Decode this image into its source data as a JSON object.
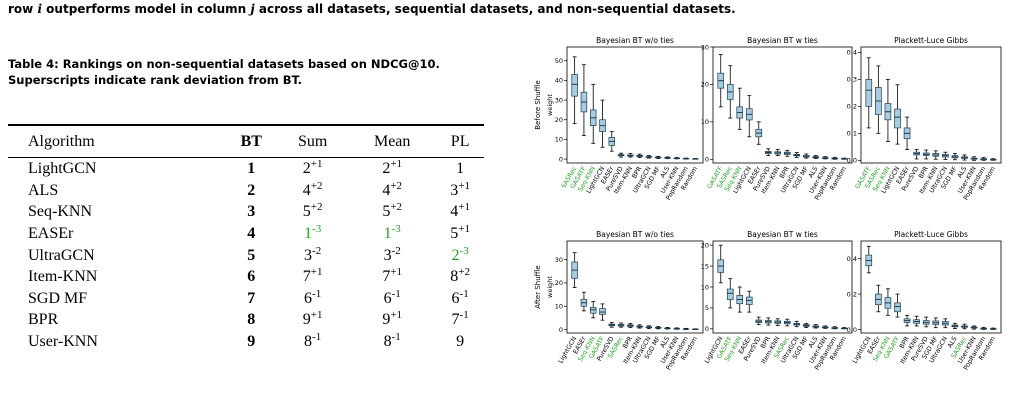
{
  "intro": [
    "row ",
    "i",
    " outperforms model in column ",
    "j",
    " across all datasets, sequential datasets, and non-sequential datasets."
  ],
  "table": {
    "caption": "Table 4: Rankings on non-sequential datasets based on NDCG@10. Superscripts indicate rank deviation from BT.",
    "columns": [
      "Algorithm",
      "BT",
      "Sum",
      "Mean",
      "PL"
    ],
    "highlight_color": "#2a9d2a",
    "rows": [
      {
        "algorithm": "LightGCN",
        "bt": 1,
        "cells": [
          {
            "rank": 2,
            "dev": "+1"
          },
          {
            "rank": 2,
            "dev": "+1"
          },
          {
            "rank": 1
          }
        ]
      },
      {
        "algorithm": "ALS",
        "bt": 2,
        "cells": [
          {
            "rank": 4,
            "dev": "+2"
          },
          {
            "rank": 4,
            "dev": "+2"
          },
          {
            "rank": 3,
            "dev": "+1"
          }
        ]
      },
      {
        "algorithm": "Seq-KNN",
        "bt": 3,
        "cells": [
          {
            "rank": 5,
            "dev": "+2"
          },
          {
            "rank": 5,
            "dev": "+2"
          },
          {
            "rank": 4,
            "dev": "+1"
          }
        ]
      },
      {
        "algorithm": "EASEr",
        "bt": 4,
        "cells": [
          {
            "rank": 1,
            "dev": "-3",
            "highlight": true
          },
          {
            "rank": 1,
            "dev": "-3",
            "highlight": true
          },
          {
            "rank": 5,
            "dev": "+1"
          }
        ]
      },
      {
        "algorithm": "UltraGCN",
        "bt": 5,
        "cells": [
          {
            "rank": 3,
            "dev": "-2"
          },
          {
            "rank": 3,
            "dev": "-2"
          },
          {
            "rank": 2,
            "dev": "-3",
            "highlight": true
          }
        ]
      },
      {
        "algorithm": "Item-KNN",
        "bt": 6,
        "cells": [
          {
            "rank": 7,
            "dev": "+1"
          },
          {
            "rank": 7,
            "dev": "+1"
          },
          {
            "rank": 8,
            "dev": "+2"
          }
        ]
      },
      {
        "algorithm": "SGD MF",
        "bt": 7,
        "cells": [
          {
            "rank": 6,
            "dev": "-1"
          },
          {
            "rank": 6,
            "dev": "-1"
          },
          {
            "rank": 6,
            "dev": "-1"
          }
        ]
      },
      {
        "algorithm": "BPR",
        "bt": 8,
        "cells": [
          {
            "rank": 9,
            "dev": "+1"
          },
          {
            "rank": 9,
            "dev": "+1"
          },
          {
            "rank": 7,
            "dev": "-1"
          }
        ]
      },
      {
        "algorithm": "User-KNN",
        "bt": 9,
        "cells": [
          {
            "rank": 8,
            "dev": "-1"
          },
          {
            "rank": 8,
            "dev": "-1"
          },
          {
            "rank": 9
          }
        ]
      }
    ]
  },
  "figure": {
    "row_labels": [
      "Before Shuffle",
      "After Shuffle"
    ],
    "box_color": "#a9cde0",
    "highlight_color": "#2a9d2a"
  },
  "chart_data": [
    {
      "type": "box",
      "title": "Bayesian BT w/o ties",
      "ylabel": "weight",
      "categories": [
        "SASRec",
        "GASATF",
        "Seq-KNN",
        "LightGCN",
        "EASEr",
        "PureSVD",
        "Item-KNN",
        "BPR",
        "UltraGCN",
        "SGD MF",
        "ALS",
        "User-KNN",
        "PopRandom",
        "Random"
      ],
      "highlighted": [
        0,
        1,
        2
      ],
      "ylim": [
        -2,
        57
      ],
      "yticks": [
        0,
        10,
        20,
        30,
        40,
        50
      ],
      "boxes": [
        [
          18,
          32,
          38,
          43,
          52
        ],
        [
          12,
          24,
          29,
          34,
          48
        ],
        [
          8,
          17,
          21,
          25,
          38
        ],
        [
          6,
          14,
          17,
          20,
          30
        ],
        [
          4,
          7,
          9,
          11,
          14
        ],
        [
          1,
          1.7,
          2,
          2.3,
          3
        ],
        [
          1,
          1.5,
          1.8,
          2.1,
          2.8
        ],
        [
          0.8,
          1.3,
          1.6,
          1.9,
          2.5
        ],
        [
          0.5,
          0.9,
          1.1,
          1.3,
          1.8
        ],
        [
          0.3,
          0.6,
          0.8,
          1,
          1.4
        ],
        [
          0.2,
          0.4,
          0.6,
          0.8,
          1.1
        ],
        [
          0.1,
          0.3,
          0.4,
          0.5,
          0.8
        ],
        [
          0,
          0.1,
          0.2,
          0.3,
          0.5
        ],
        [
          0,
          0.05,
          0.1,
          0.15,
          0.3
        ]
      ]
    },
    {
      "type": "box",
      "title": "Bayesian BT w ties",
      "categories": [
        "GASATF",
        "SASRec",
        "Seq-KNN",
        "LightGCN",
        "EASEr",
        "PureSVD",
        "Item-KNN",
        "BPR",
        "UltraGCN",
        "SGD MF",
        "ALS",
        "User-KNN",
        "PopRandom",
        "Random"
      ],
      "highlighted": [
        0,
        1,
        2
      ],
      "ylim": [
        -1,
        30
      ],
      "yticks": [
        0,
        10,
        20,
        30
      ],
      "boxes": [
        [
          14,
          19,
          21,
          23,
          28
        ],
        [
          11,
          16,
          18,
          20,
          25
        ],
        [
          8,
          11,
          12.5,
          14,
          19
        ],
        [
          6,
          10.5,
          12,
          13.5,
          17
        ],
        [
          4,
          6,
          7,
          8,
          10
        ],
        [
          1,
          1.5,
          1.8,
          2.1,
          2.8
        ],
        [
          1,
          1.4,
          1.7,
          2,
          2.6
        ],
        [
          0.8,
          1.3,
          1.6,
          1.9,
          2.4
        ],
        [
          0.5,
          0.9,
          1.1,
          1.3,
          1.8
        ],
        [
          0.3,
          0.6,
          0.8,
          1,
          1.4
        ],
        [
          0.2,
          0.4,
          0.5,
          0.7,
          1
        ],
        [
          0.1,
          0.25,
          0.35,
          0.45,
          0.7
        ],
        [
          0,
          0.1,
          0.2,
          0.3,
          0.5
        ],
        [
          0,
          0.05,
          0.1,
          0.15,
          0.3
        ]
      ]
    },
    {
      "type": "box",
      "title": "Plackett-Luce Gibbs",
      "categories": [
        "GASATF",
        "SASRec",
        "Seq-KNN",
        "LightGCN",
        "EASEr",
        "PureSVD",
        "BPR",
        "Item-KNN",
        "UltraGCN",
        "SGD MF",
        "ALS",
        "User-KNN",
        "PopRandom",
        "Random"
      ],
      "highlighted": [
        0,
        1,
        2
      ],
      "ylim": [
        -0.01,
        0.42
      ],
      "yticks": [
        {
          "value": 0,
          "label": "0.0"
        },
        0.1,
        0.2,
        0.3,
        0.4
      ],
      "boxes": [
        [
          0.12,
          0.2,
          0.26,
          0.3,
          0.38
        ],
        [
          0.1,
          0.17,
          0.22,
          0.27,
          0.35
        ],
        [
          0.07,
          0.15,
          0.18,
          0.21,
          0.3
        ],
        [
          0.06,
          0.12,
          0.16,
          0.19,
          0.28
        ],
        [
          0.04,
          0.08,
          0.1,
          0.12,
          0.16
        ],
        [
          0.005,
          0.02,
          0.025,
          0.03,
          0.04
        ],
        [
          0.005,
          0.018,
          0.022,
          0.027,
          0.038
        ],
        [
          0.004,
          0.015,
          0.02,
          0.025,
          0.035
        ],
        [
          0.003,
          0.012,
          0.017,
          0.022,
          0.03
        ],
        [
          0.002,
          0.009,
          0.013,
          0.017,
          0.025
        ],
        [
          0.001,
          0.007,
          0.01,
          0.013,
          0.02
        ],
        [
          0,
          0.004,
          0.006,
          0.008,
          0.013
        ],
        [
          0,
          0.002,
          0.004,
          0.006,
          0.01
        ],
        [
          0,
          0.001,
          0.002,
          0.003,
          0.006
        ]
      ]
    },
    {
      "type": "box",
      "title": "Bayesian BT w/o ties",
      "ylabel": "weight",
      "categories": [
        "LightGCN",
        "EASEr",
        "Seq-KNN",
        "GASATF",
        "PureSVD",
        "SASRec",
        "BPR",
        "Item-KNN",
        "UltraGCN",
        "SGD MF",
        "ALS",
        "User-KNN",
        "PopRandom",
        "Random"
      ],
      "highlighted": [
        2,
        3,
        5
      ],
      "ylim": [
        -1.5,
        38
      ],
      "yticks": [
        0,
        10,
        20,
        30
      ],
      "boxes": [
        [
          18,
          22,
          25.5,
          29,
          33
        ],
        [
          8,
          10,
          11.5,
          13,
          16
        ],
        [
          5,
          7,
          8.5,
          9.5,
          12
        ],
        [
          4,
          6.5,
          7.5,
          9,
          11
        ],
        [
          1,
          1.6,
          2,
          2.3,
          3
        ],
        [
          1,
          1.5,
          1.8,
          2.2,
          2.8
        ],
        [
          0.8,
          1.3,
          1.7,
          2,
          2.6
        ],
        [
          0.6,
          1,
          1.3,
          1.5,
          2
        ],
        [
          0.4,
          0.8,
          1,
          1.2,
          1.6
        ],
        [
          0.3,
          0.6,
          0.8,
          0.9,
          1.3
        ],
        [
          0.2,
          0.4,
          0.5,
          0.6,
          0.9
        ],
        [
          0.1,
          0.25,
          0.35,
          0.45,
          0.7
        ],
        [
          0,
          0.1,
          0.2,
          0.3,
          0.5
        ],
        [
          0,
          0.05,
          0.1,
          0.15,
          0.3
        ]
      ]
    },
    {
      "type": "box",
      "title": "Bayesian BT w ties",
      "categories": [
        "LightGCN",
        "GASATF",
        "Seq-KNN",
        "EASEr",
        "PureSVD",
        "BPR",
        "Item-KNN",
        "SASRec",
        "UltraGCN",
        "SGD MF",
        "ALS",
        "User-KNN",
        "PopRandom",
        "Random"
      ],
      "highlighted": [
        1,
        2,
        7
      ],
      "ylim": [
        -1,
        21
      ],
      "yticks": [
        0,
        5,
        10,
        15,
        20
      ],
      "boxes": [
        [
          11,
          13.5,
          15,
          16.5,
          20
        ],
        [
          5,
          7,
          8.5,
          9.5,
          12
        ],
        [
          4,
          6,
          7,
          8,
          10
        ],
        [
          4,
          5.8,
          6.8,
          7.6,
          9
        ],
        [
          1,
          1.5,
          1.8,
          2.1,
          2.8
        ],
        [
          0.9,
          1.4,
          1.7,
          2,
          2.6
        ],
        [
          0.8,
          1.3,
          1.6,
          1.9,
          2.4
        ],
        [
          0.7,
          1.2,
          1.5,
          1.8,
          2.3
        ],
        [
          0.5,
          0.9,
          1.1,
          1.3,
          1.8
        ],
        [
          0.3,
          0.6,
          0.8,
          1,
          1.3
        ],
        [
          0.2,
          0.4,
          0.5,
          0.7,
          1
        ],
        [
          0.1,
          0.25,
          0.35,
          0.45,
          0.7
        ],
        [
          0,
          0.1,
          0.2,
          0.3,
          0.5
        ],
        [
          0,
          0.05,
          0.1,
          0.15,
          0.3
        ]
      ]
    },
    {
      "type": "box",
      "title": "Plackett-Luce Gibbs",
      "categories": [
        "LightGCN",
        "EASEr",
        "Seq-KNN",
        "GASATF",
        "BPR",
        "Item-KNN",
        "PureSVD",
        "SGD MF",
        "UltraGCN",
        "ALS",
        "SASRec",
        "User-KNN",
        "PopRandom",
        "Random"
      ],
      "highlighted": [
        2,
        3,
        10
      ],
      "ylim": [
        -0.02,
        0.5
      ],
      "yticks": [
        {
          "value": 0,
          "label": "0.0"
        },
        0.2,
        0.4
      ],
      "boxes": [
        [
          0.32,
          0.36,
          0.39,
          0.42,
          0.47
        ],
        [
          0.1,
          0.14,
          0.17,
          0.2,
          0.25
        ],
        [
          0.08,
          0.12,
          0.15,
          0.18,
          0.23
        ],
        [
          0.07,
          0.1,
          0.13,
          0.15,
          0.2
        ],
        [
          0.02,
          0.04,
          0.05,
          0.06,
          0.08
        ],
        [
          0.02,
          0.035,
          0.045,
          0.055,
          0.075
        ],
        [
          0.015,
          0.03,
          0.04,
          0.05,
          0.07
        ],
        [
          0.01,
          0.028,
          0.038,
          0.048,
          0.065
        ],
        [
          0.01,
          0.025,
          0.035,
          0.045,
          0.06
        ],
        [
          0.005,
          0.015,
          0.02,
          0.025,
          0.035
        ],
        [
          0.004,
          0.012,
          0.016,
          0.02,
          0.03
        ],
        [
          0.002,
          0.008,
          0.011,
          0.014,
          0.02
        ],
        [
          0,
          0.003,
          0.005,
          0.007,
          0.012
        ],
        [
          0,
          0.001,
          0.003,
          0.005,
          0.008
        ]
      ]
    }
  ]
}
